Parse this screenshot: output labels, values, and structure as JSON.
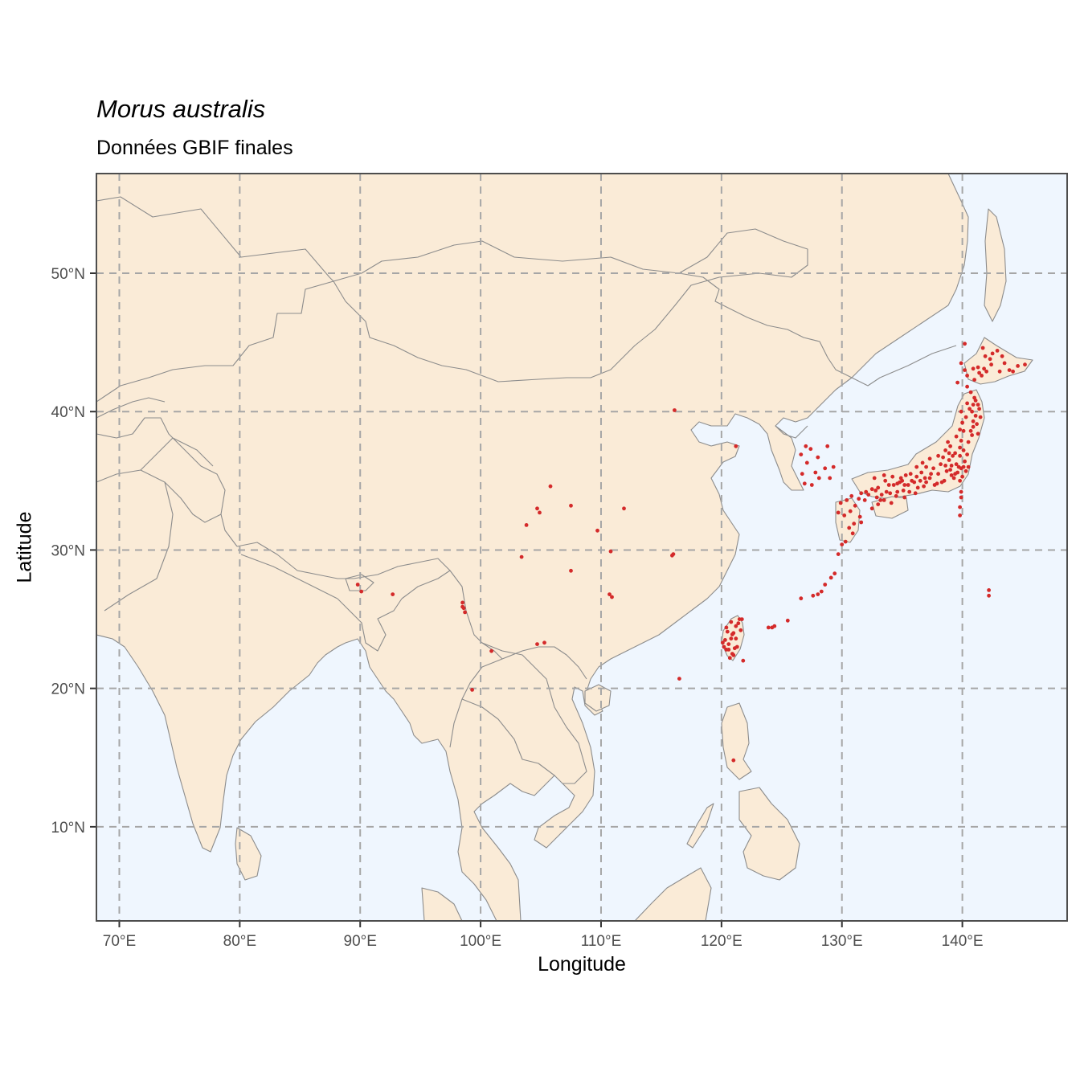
{
  "title": "Morus australis",
  "subtitle": "Données GBIF finales",
  "axes": {
    "xlabel": "Longitude",
    "ylabel": "Latitude",
    "x_ticks": [
      {
        "value": 70,
        "label": "70°E"
      },
      {
        "value": 80,
        "label": "80°E"
      },
      {
        "value": 90,
        "label": "90°E"
      },
      {
        "value": 100,
        "label": "100°E"
      },
      {
        "value": 110,
        "label": "110°E"
      },
      {
        "value": 120,
        "label": "120°E"
      },
      {
        "value": 130,
        "label": "130°E"
      },
      {
        "value": 140,
        "label": "140°E"
      }
    ],
    "y_ticks": [
      {
        "value": 10,
        "label": "10°N"
      },
      {
        "value": 20,
        "label": "20°N"
      },
      {
        "value": 30,
        "label": "30°N"
      },
      {
        "value": 40,
        "label": "40°N"
      },
      {
        "value": 50,
        "label": "50°N"
      }
    ]
  },
  "colors": {
    "land": "#faebd7",
    "ocean": "#eff6fe",
    "border": "#8c8c8c",
    "point": "#d42a2a",
    "grid": "#a6a6a6",
    "frame": "#4d4d4d"
  },
  "map": {
    "extent": {
      "lon": [
        68.1,
        148.7
      ],
      "lat": [
        3.2,
        57.2
      ]
    },
    "grid": "dashed"
  },
  "occurrences": [
    [
      116.1,
      40.1
    ],
    [
      121.2,
      37.5
    ],
    [
      105.8,
      34.6
    ],
    [
      104.7,
      33.0
    ],
    [
      104.9,
      32.7
    ],
    [
      107.5,
      33.2
    ],
    [
      111.9,
      33.0
    ],
    [
      103.8,
      31.8
    ],
    [
      109.7,
      31.4
    ],
    [
      110.8,
      29.9
    ],
    [
      103.4,
      29.5
    ],
    [
      107.5,
      28.5
    ],
    [
      110.7,
      26.8
    ],
    [
      110.9,
      26.6
    ],
    [
      116.0,
      29.7
    ],
    [
      115.9,
      29.6
    ],
    [
      89.8,
      27.5
    ],
    [
      90.1,
      27.0
    ],
    [
      92.7,
      26.8
    ],
    [
      98.5,
      26.2
    ],
    [
      98.6,
      25.8
    ],
    [
      98.7,
      25.5
    ],
    [
      98.5,
      25.9
    ],
    [
      100.9,
      22.7
    ],
    [
      104.7,
      23.2
    ],
    [
      105.3,
      23.3
    ],
    [
      99.3,
      19.9
    ],
    [
      116.5,
      20.7
    ],
    [
      121.0,
      14.8
    ],
    [
      125.5,
      24.9
    ],
    [
      123.9,
      24.4
    ],
    [
      124.2,
      24.4
    ],
    [
      124.4,
      24.5
    ],
    [
      126.6,
      26.5
    ],
    [
      127.6,
      26.7
    ],
    [
      128.0,
      26.8
    ],
    [
      128.3,
      27.0
    ],
    [
      128.6,
      27.5
    ],
    [
      129.1,
      28.0
    ],
    [
      129.4,
      28.3
    ],
    [
      129.7,
      29.7
    ],
    [
      130.0,
      30.4
    ],
    [
      142.2,
      27.1
    ],
    [
      142.2,
      26.7
    ],
    [
      120.4,
      22.8
    ],
    [
      120.6,
      23.2
    ],
    [
      120.8,
      23.6
    ],
    [
      121.0,
      24.0
    ],
    [
      121.2,
      24.5
    ],
    [
      121.5,
      25.0
    ],
    [
      120.3,
      23.5
    ],
    [
      120.9,
      22.5
    ],
    [
      121.3,
      23.0
    ],
    [
      121.6,
      24.2
    ],
    [
      120.5,
      24.1
    ],
    [
      121.1,
      22.9
    ],
    [
      120.7,
      22.2
    ],
    [
      121.7,
      25.0
    ],
    [
      120.2,
      23.0
    ],
    [
      121.8,
      22.0
    ],
    [
      121.2,
      23.6
    ],
    [
      120.8,
      24.8
    ],
    [
      120.4,
      24.4
    ],
    [
      121.0,
      22.4
    ],
    [
      120.1,
      23.3
    ],
    [
      120.6,
      22.8
    ],
    [
      121.4,
      24.7
    ],
    [
      120.9,
      23.9
    ],
    [
      127.0,
      37.5
    ],
    [
      127.4,
      37.3
    ],
    [
      128.6,
      35.9
    ],
    [
      129.0,
      35.2
    ],
    [
      126.7,
      35.5
    ],
    [
      127.8,
      35.6
    ],
    [
      127.1,
      36.3
    ],
    [
      128.1,
      35.2
    ],
    [
      126.9,
      34.8
    ],
    [
      129.3,
      36.0
    ],
    [
      126.6,
      36.9
    ],
    [
      128.8,
      37.5
    ],
    [
      127.5,
      34.7
    ],
    [
      128.0,
      36.7
    ],
    [
      129.9,
      33.4
    ],
    [
      130.4,
      33.6
    ],
    [
      130.7,
      32.8
    ],
    [
      131.1,
      33.2
    ],
    [
      131.5,
      32.4
    ],
    [
      130.6,
      31.6
    ],
    [
      130.2,
      32.5
    ],
    [
      131.0,
      31.9
    ],
    [
      130.8,
      33.9
    ],
    [
      129.7,
      32.7
    ],
    [
      131.4,
      33.7
    ],
    [
      130.9,
      31.2
    ],
    [
      130.3,
      30.6
    ],
    [
      131.6,
      32.0
    ],
    [
      132.5,
      34.4
    ],
    [
      133.0,
      34.5
    ],
    [
      133.9,
      34.7
    ],
    [
      134.6,
      34.8
    ],
    [
      135.2,
      34.7
    ],
    [
      132.0,
      34.2
    ],
    [
      133.5,
      35.4
    ],
    [
      134.2,
      35.3
    ],
    [
      132.9,
      33.8
    ],
    [
      133.5,
      33.6
    ],
    [
      134.0,
      34.1
    ],
    [
      134.5,
      33.9
    ],
    [
      133.0,
      33.3
    ],
    [
      132.5,
      33.0
    ],
    [
      131.9,
      33.6
    ],
    [
      135.5,
      34.7
    ],
    [
      135.8,
      35.0
    ],
    [
      136.2,
      35.3
    ],
    [
      136.9,
      35.2
    ],
    [
      137.4,
      35.5
    ],
    [
      135.6,
      34.2
    ],
    [
      136.3,
      34.5
    ],
    [
      135.2,
      33.8
    ],
    [
      136.7,
      36.3
    ],
    [
      137.3,
      36.6
    ],
    [
      138.2,
      36.2
    ],
    [
      138.7,
      35.7
    ],
    [
      139.1,
      35.4
    ],
    [
      139.6,
      35.6
    ],
    [
      139.9,
      35.9
    ],
    [
      140.3,
      35.7
    ],
    [
      139.5,
      36.2
    ],
    [
      138.9,
      36.5
    ],
    [
      139.8,
      36.8
    ],
    [
      140.2,
      36.4
    ],
    [
      139.3,
      35.2
    ],
    [
      138.5,
      35.0
    ],
    [
      137.9,
      34.8
    ],
    [
      140.0,
      35.3
    ],
    [
      139.7,
      36.0
    ],
    [
      140.1,
      37.2
    ],
    [
      140.5,
      37.8
    ],
    [
      140.8,
      38.3
    ],
    [
      140.9,
      38.9
    ],
    [
      141.1,
      39.7
    ],
    [
      140.6,
      40.2
    ],
    [
      140.9,
      40.5
    ],
    [
      141.2,
      39.1
    ],
    [
      140.3,
      39.6
    ],
    [
      140.1,
      38.6
    ],
    [
      139.9,
      37.9
    ],
    [
      139.0,
      37.5
    ],
    [
      138.6,
      37.2
    ],
    [
      139.4,
      37.0
    ],
    [
      141.4,
      40.2
    ],
    [
      141.0,
      41.0
    ],
    [
      140.7,
      41.4
    ],
    [
      140.4,
      41.8
    ],
    [
      141.0,
      42.3
    ],
    [
      141.4,
      42.8
    ],
    [
      141.8,
      43.1
    ],
    [
      142.4,
      43.4
    ],
    [
      143.1,
      42.9
    ],
    [
      143.9,
      43.0
    ],
    [
      144.6,
      43.3
    ],
    [
      142.5,
      44.2
    ],
    [
      141.3,
      43.2
    ],
    [
      140.4,
      42.6
    ],
    [
      139.6,
      42.1
    ],
    [
      142.0,
      42.9
    ],
    [
      143.5,
      43.5
    ],
    [
      141.7,
      44.6
    ],
    [
      142.3,
      43.8
    ],
    [
      140.9,
      43.1
    ],
    [
      144.2,
      42.9
    ],
    [
      141.6,
      42.6
    ],
    [
      140.2,
      43.0
    ],
    [
      145.2,
      43.4
    ],
    [
      136.0,
      34.9
    ],
    [
      136.5,
      35.0
    ],
    [
      137.0,
      34.9
    ],
    [
      135.0,
      35.0
    ],
    [
      134.8,
      34.9
    ],
    [
      138.3,
      34.9
    ],
    [
      138.0,
      35.5
    ],
    [
      137.6,
      35.9
    ],
    [
      137.0,
      36.0
    ],
    [
      138.4,
      36.7
    ],
    [
      138.9,
      37.0
    ],
    [
      139.2,
      36.8
    ],
    [
      139.0,
      35.8
    ],
    [
      139.4,
      35.5
    ],
    [
      140.5,
      36.0
    ],
    [
      140.4,
      36.9
    ],
    [
      139.8,
      37.4
    ],
    [
      140.7,
      38.6
    ],
    [
      141.3,
      38.4
    ],
    [
      140.9,
      39.3
    ],
    [
      141.5,
      39.6
    ],
    [
      140.8,
      40.0
    ],
    [
      140.4,
      40.6
    ],
    [
      141.1,
      40.8
    ],
    [
      141.3,
      40.5
    ],
    [
      140.1,
      36.0
    ],
    [
      139.1,
      36.1
    ],
    [
      138.6,
      36.1
    ],
    [
      137.3,
      35.2
    ],
    [
      136.6,
      35.6
    ],
    [
      136.2,
      36.0
    ],
    [
      135.7,
      35.5
    ],
    [
      135.3,
      35.4
    ],
    [
      134.9,
      35.2
    ],
    [
      134.3,
      34.7
    ],
    [
      133.7,
      34.2
    ],
    [
      133.3,
      34.0
    ],
    [
      132.8,
      34.3
    ],
    [
      132.2,
      34.0
    ],
    [
      131.6,
      34.1
    ],
    [
      139.8,
      35.0
    ],
    [
      139.9,
      34.2
    ],
    [
      139.9,
      33.8
    ],
    [
      139.8,
      33.1
    ],
    [
      139.8,
      32.5
    ],
    [
      140.2,
      44.9
    ],
    [
      139.9,
      43.5
    ],
    [
      141.9,
      44.0
    ],
    [
      142.9,
      44.4
    ],
    [
      143.3,
      44.0
    ],
    [
      133.2,
      33.6
    ],
    [
      134.1,
      33.4
    ],
    [
      134.6,
      34.2
    ],
    [
      133.6,
      35.0
    ],
    [
      132.7,
      35.2
    ],
    [
      135.1,
      34.3
    ],
    [
      136.1,
      34.1
    ],
    [
      136.8,
      34.6
    ],
    [
      137.7,
      34.7
    ],
    [
      138.0,
      36.8
    ],
    [
      138.8,
      37.8
    ],
    [
      139.5,
      38.2
    ],
    [
      139.8,
      38.7
    ],
    [
      140.0,
      39.2
    ],
    [
      139.9,
      40.0
    ]
  ]
}
